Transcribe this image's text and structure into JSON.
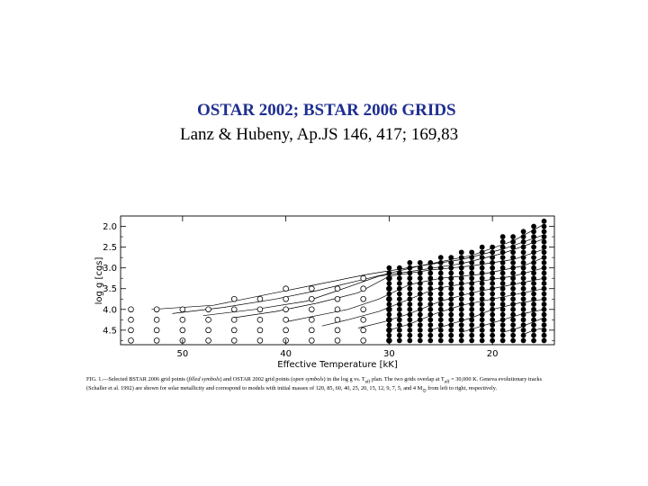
{
  "header": {
    "title": "OSTAR 2002; BSTAR 2006 GRIDS",
    "subtitle": "Lanz & Hubeny, Ap.JS  146, 417; 169,83"
  },
  "caption": {
    "lead": "FIG. 1.—Selected BSTAR 2006 grid points (",
    "filled_label": "filled symbols",
    "mid1": ") and OSTAR 2002 grid points (",
    "open_label": "open symbols",
    "mid2": ") in the log g vs. T",
    "teff_sub": "eff",
    "mid3": " plan. The two grids overlap at T",
    "mid4": " = 30,000 K. Geneva evolutionary tracks (Schaller et al. 1992) are shown for solar metallicity and correspond to models with initial masses of 120, 85, 60, 40, 25, 20, 15, 12, 9, 7, 5, and 4 M",
    "msun_sub": "⊙",
    "tail": " from left to right, respectively."
  },
  "chart_data": {
    "type": "scatter",
    "xlabel": "Effective Temperature [kK]",
    "ylabel": "log g [cgs]",
    "xlim": [
      56,
      14
    ],
    "ylim": [
      4.85,
      1.75
    ],
    "xticks": [
      50,
      40,
      30,
      20
    ],
    "yticks": [
      2.0,
      2.5,
      3.0,
      3.5,
      4.0,
      4.5
    ],
    "ytick_labels": [
      "2.0",
      "2.5",
      "3.0",
      "3.5",
      "4.0",
      "4.5"
    ],
    "series": [
      {
        "marker": "open-circle",
        "columns": [
          {
            "teff": 55.0,
            "logg_min": 4.0,
            "logg_max": 4.75
          },
          {
            "teff": 52.5,
            "logg_min": 4.0,
            "logg_max": 4.75
          },
          {
            "teff": 50.0,
            "logg_min": 4.0,
            "logg_max": 4.75
          },
          {
            "teff": 47.5,
            "logg_min": 4.0,
            "logg_max": 4.75
          },
          {
            "teff": 45.0,
            "logg_min": 3.75,
            "logg_max": 4.75
          },
          {
            "teff": 42.5,
            "logg_min": 3.75,
            "logg_max": 4.75
          },
          {
            "teff": 40.0,
            "logg_min": 3.5,
            "logg_max": 4.75
          },
          {
            "teff": 37.5,
            "logg_min": 3.5,
            "logg_max": 4.75
          },
          {
            "teff": 35.0,
            "logg_min": 3.5,
            "logg_max": 4.75
          },
          {
            "teff": 32.5,
            "logg_min": 3.25,
            "logg_max": 4.75
          },
          {
            "teff": 30.0,
            "logg_min": 3.25,
            "logg_max": 4.75
          }
        ]
      },
      {
        "marker": "filled-circle",
        "columns": [
          {
            "teff": 30.0,
            "logg_min": 3.0,
            "logg_max": 4.75
          },
          {
            "teff": 29.0,
            "logg_min": 3.0,
            "logg_max": 4.75
          },
          {
            "teff": 28.0,
            "logg_min": 2.875,
            "logg_max": 4.75
          },
          {
            "teff": 27.0,
            "logg_min": 2.875,
            "logg_max": 4.75
          },
          {
            "teff": 26.0,
            "logg_min": 2.875,
            "logg_max": 4.75
          },
          {
            "teff": 25.0,
            "logg_min": 2.75,
            "logg_max": 4.75
          },
          {
            "teff": 24.0,
            "logg_min": 2.75,
            "logg_max": 4.75
          },
          {
            "teff": 23.0,
            "logg_min": 2.625,
            "logg_max": 4.75
          },
          {
            "teff": 22.0,
            "logg_min": 2.625,
            "logg_max": 4.75
          },
          {
            "teff": 21.0,
            "logg_min": 2.5,
            "logg_max": 4.75
          },
          {
            "teff": 20.0,
            "logg_min": 2.5,
            "logg_max": 4.75
          },
          {
            "teff": 19.0,
            "logg_min": 2.25,
            "logg_max": 4.75
          },
          {
            "teff": 18.0,
            "logg_min": 2.25,
            "logg_max": 4.75
          },
          {
            "teff": 17.0,
            "logg_min": 2.125,
            "logg_max": 4.75
          },
          {
            "teff": 16.0,
            "logg_min": 2.0,
            "logg_max": 4.75
          },
          {
            "teff": 15.0,
            "logg_min": 1.875,
            "logg_max": 4.75
          }
        ]
      }
    ],
    "logg_step": 0.125,
    "open_logg_step": 0.25,
    "tracks": [
      {
        "mass": 120,
        "points": [
          [
            53,
            4.0
          ],
          [
            47,
            3.9
          ],
          [
            41,
            3.6
          ],
          [
            37,
            3.4
          ],
          [
            32,
            3.15
          ],
          [
            27,
            2.95
          ],
          [
            22,
            2.7
          ],
          [
            18,
            2.35
          ],
          [
            15,
            1.95
          ]
        ]
      },
      {
        "mass": 85,
        "points": [
          [
            51,
            4.1
          ],
          [
            46,
            3.95
          ],
          [
            41,
            3.75
          ],
          [
            37,
            3.55
          ],
          [
            32,
            3.25
          ],
          [
            27,
            2.95
          ],
          [
            23,
            2.8
          ],
          [
            19,
            2.55
          ],
          [
            15,
            2.2
          ]
        ]
      },
      {
        "mass": 60,
        "points": [
          [
            48,
            4.15
          ],
          [
            43,
            4.0
          ],
          [
            38,
            3.8
          ],
          [
            35,
            3.55
          ],
          [
            31,
            3.2
          ],
          [
            27,
            3.05
          ],
          [
            23,
            2.9
          ],
          [
            19,
            2.65
          ],
          [
            15,
            2.3
          ]
        ]
      },
      {
        "mass": 40,
        "points": [
          [
            45,
            4.2
          ],
          [
            41,
            4.05
          ],
          [
            37,
            3.85
          ],
          [
            33,
            3.6
          ],
          [
            30,
            3.2
          ],
          [
            26,
            3.05
          ],
          [
            22,
            2.95
          ],
          [
            18,
            2.8
          ],
          [
            15,
            2.55
          ]
        ]
      },
      {
        "mass": 25,
        "points": [
          [
            40,
            4.3
          ],
          [
            37,
            4.15
          ],
          [
            34,
            4.0
          ],
          [
            31,
            3.75
          ],
          [
            28,
            3.4
          ],
          [
            25,
            3.25
          ],
          [
            21,
            3.15
          ],
          [
            17,
            2.95
          ],
          [
            15,
            2.75
          ]
        ]
      },
      {
        "mass": 20,
        "points": [
          [
            36.5,
            4.4
          ],
          [
            34,
            4.25
          ],
          [
            31,
            4.05
          ],
          [
            28.5,
            3.8
          ],
          [
            25.5,
            3.5
          ],
          [
            22,
            3.35
          ],
          [
            18,
            3.2
          ],
          [
            15,
            3.0
          ]
        ]
      },
      {
        "mass": 15,
        "points": [
          [
            33,
            4.45
          ],
          [
            30.5,
            4.3
          ],
          [
            28,
            4.1
          ],
          [
            25,
            3.8
          ],
          [
            22,
            3.6
          ],
          [
            19,
            3.45
          ],
          [
            16,
            3.3
          ],
          [
            15,
            3.25
          ]
        ]
      },
      {
        "mass": 12,
        "points": [
          [
            30,
            4.5
          ],
          [
            28,
            4.35
          ],
          [
            25.5,
            4.1
          ],
          [
            23,
            3.9
          ],
          [
            20,
            3.75
          ],
          [
            17,
            3.6
          ],
          [
            15,
            3.5
          ]
        ]
      },
      {
        "mass": 9,
        "points": [
          [
            26,
            4.5
          ],
          [
            24,
            4.35
          ],
          [
            22,
            4.2
          ],
          [
            20,
            4.0
          ],
          [
            17.5,
            3.85
          ],
          [
            15,
            3.75
          ]
        ]
      },
      {
        "mass": 7,
        "points": [
          [
            23,
            4.55
          ],
          [
            21,
            4.4
          ],
          [
            19,
            4.25
          ],
          [
            17,
            4.1
          ],
          [
            15,
            4.0
          ]
        ]
      },
      {
        "mass": 5,
        "points": [
          [
            19,
            4.55
          ],
          [
            17.5,
            4.45
          ],
          [
            16,
            4.3
          ],
          [
            15,
            4.2
          ]
        ]
      },
      {
        "mass": 4,
        "points": [
          [
            17,
            4.6
          ],
          [
            16,
            4.5
          ],
          [
            15,
            4.45
          ]
        ]
      }
    ]
  }
}
